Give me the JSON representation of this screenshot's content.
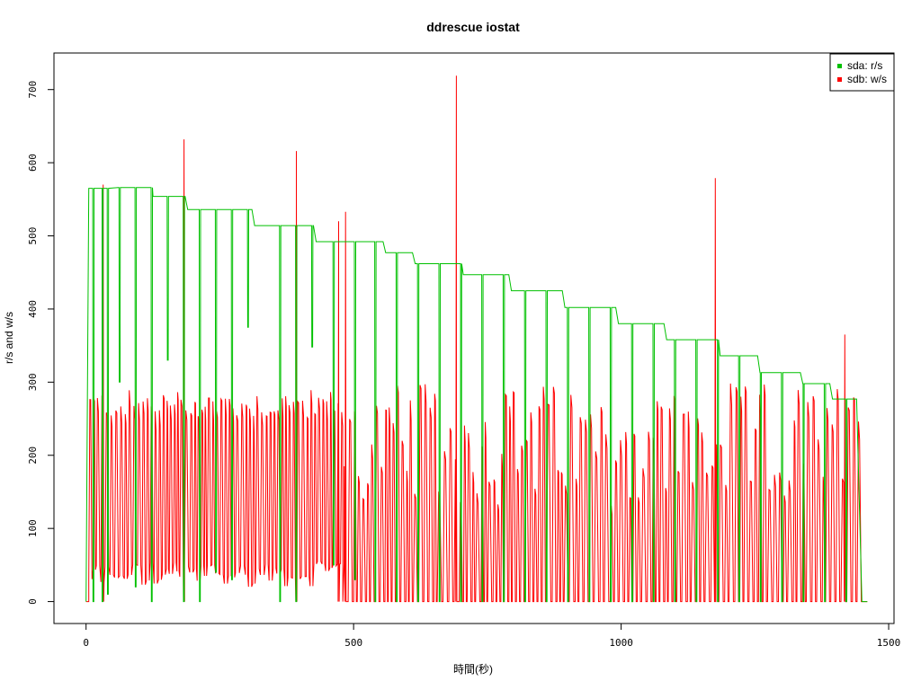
{
  "chart_data": {
    "type": "line",
    "title": "ddrescue iostat",
    "xlabel": "時間(秒)",
    "ylabel": "r/s and w/s",
    "xlim": [
      -60,
      1510
    ],
    "ylim": [
      -30,
      750
    ],
    "x_ticks": [
      0,
      500,
      1000,
      1500
    ],
    "y_ticks": [
      0,
      100,
      200,
      300,
      400,
      500,
      600,
      700
    ],
    "legend": {
      "position": "top-right",
      "entries": [
        {
          "label": "sda: r/s",
          "color": "#00c000"
        },
        {
          "label": "sdb: w/s",
          "color": "#ff0000"
        }
      ]
    },
    "series": [
      {
        "name": "sda: r/s",
        "color": "#00c000",
        "steps": [
          [
            0,
            0
          ],
          [
            5,
            565
          ],
          [
            30,
            565
          ],
          [
            60,
            566
          ],
          [
            120,
            566
          ],
          [
            125,
            554
          ],
          [
            185,
            554
          ],
          [
            190,
            536
          ],
          [
            310,
            536
          ],
          [
            315,
            514
          ],
          [
            425,
            514
          ],
          [
            430,
            492
          ],
          [
            555,
            492
          ],
          [
            560,
            477
          ],
          [
            610,
            477
          ],
          [
            615,
            462
          ],
          [
            700,
            462
          ],
          [
            705,
            447
          ],
          [
            790,
            447
          ],
          [
            795,
            425
          ],
          [
            890,
            425
          ],
          [
            895,
            402
          ],
          [
            990,
            402
          ],
          [
            995,
            380
          ],
          [
            1080,
            380
          ],
          [
            1085,
            358
          ],
          [
            1180,
            358
          ],
          [
            1185,
            336
          ],
          [
            1255,
            336
          ],
          [
            1260,
            313
          ],
          [
            1335,
            313
          ],
          [
            1340,
            298
          ],
          [
            1390,
            298
          ],
          [
            1395,
            277
          ],
          [
            1440,
            277
          ],
          [
            1450,
            0
          ],
          [
            1460,
            0
          ]
        ],
        "dips": [
          {
            "x": 13,
            "y": 0
          },
          {
            "x": 30,
            "y": 0
          },
          {
            "x": 40,
            "y": 10
          },
          {
            "x": 62,
            "y": 300
          },
          {
            "x": 92,
            "y": 20
          },
          {
            "x": 122,
            "y": 0
          },
          {
            "x": 152,
            "y": 330
          },
          {
            "x": 182,
            "y": 0
          },
          {
            "x": 212,
            "y": 0
          },
          {
            "x": 242,
            "y": 40
          },
          {
            "x": 272,
            "y": 30
          },
          {
            "x": 302,
            "y": 375
          },
          {
            "x": 362,
            "y": 0
          },
          {
            "x": 392,
            "y": 0
          },
          {
            "x": 422,
            "y": 348
          },
          {
            "x": 462,
            "y": 50
          },
          {
            "x": 502,
            "y": 30
          },
          {
            "x": 540,
            "y": 0
          },
          {
            "x": 580,
            "y": 0
          },
          {
            "x": 620,
            "y": 0
          },
          {
            "x": 660,
            "y": 0
          },
          {
            "x": 700,
            "y": 0
          },
          {
            "x": 740,
            "y": 0
          },
          {
            "x": 780,
            "y": 0
          },
          {
            "x": 820,
            "y": 0
          },
          {
            "x": 860,
            "y": 0
          },
          {
            "x": 900,
            "y": 0
          },
          {
            "x": 940,
            "y": 0
          },
          {
            "x": 980,
            "y": 0
          },
          {
            "x": 1020,
            "y": 0
          },
          {
            "x": 1060,
            "y": 0
          },
          {
            "x": 1100,
            "y": 0
          },
          {
            "x": 1140,
            "y": 0
          },
          {
            "x": 1180,
            "y": 0
          },
          {
            "x": 1220,
            "y": 0
          },
          {
            "x": 1260,
            "y": 0
          },
          {
            "x": 1300,
            "y": 0
          },
          {
            "x": 1340,
            "y": 0
          },
          {
            "x": 1380,
            "y": 0
          },
          {
            "x": 1420,
            "y": 0
          }
        ]
      },
      {
        "name": "sdb: w/s",
        "color": "#ff0000",
        "phase1": {
          "x_start": 5,
          "x_end": 480,
          "high": [
            250,
            290
          ],
          "low": [
            20,
            55
          ],
          "period": 7.5
        },
        "phase2": {
          "x_start": 480,
          "x_end": 1450,
          "high": [
            130,
            300
          ],
          "low": [
            0,
            0
          ],
          "period": 8.5
        },
        "spikes": [
          {
            "x": 32,
            "y": 570
          },
          {
            "x": 183,
            "y": 632
          },
          {
            "x": 393,
            "y": 616
          },
          {
            "x": 472,
            "y": 520
          },
          {
            "x": 485,
            "y": 533
          },
          {
            "x": 692,
            "y": 719
          },
          {
            "x": 1176,
            "y": 579
          },
          {
            "x": 1418,
            "y": 365
          }
        ]
      }
    ]
  }
}
